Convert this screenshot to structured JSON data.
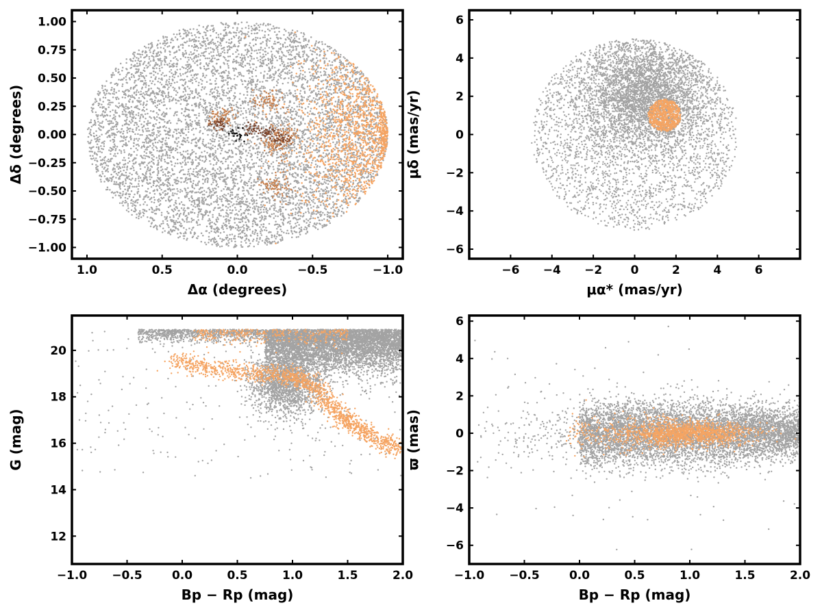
{
  "colors": {
    "field": "#a3a3a3",
    "member": "#f5a462",
    "member_mid": "#c98250",
    "member_dark": "#7a4630",
    "core": "#111111"
  },
  "chart_data": [
    {
      "type": "scatter",
      "id": "sky",
      "xlabel": "Δα (degrees)",
      "ylabel": "Δδ (degrees)",
      "xlim": [
        1.1,
        -1.1
      ],
      "ylim": [
        -1.1,
        1.1
      ],
      "xticks": [
        1.0,
        0.5,
        0.0,
        -0.5,
        -1.0
      ],
      "xtick_labels": [
        "1.0",
        "0.5",
        "0.0",
        "−0.5",
        "−1.0"
      ],
      "yticks": [
        1.0,
        0.75,
        0.5,
        0.25,
        0.0,
        -0.25,
        -0.5,
        -0.75,
        -1.0
      ],
      "ytick_labels": [
        "1.00",
        "0.75",
        "0.50",
        "0.25",
        "0.00",
        "−0.25",
        "−0.50",
        "−0.75",
        "−1.00"
      ],
      "grid": false,
      "series": [
        {
          "role": "field",
          "distribution": "uniform disk",
          "center": [
            0,
            0
          ],
          "radius_x": 1.0,
          "radius_y": 1.0
        },
        {
          "role": "member",
          "distribution": "eastern crescent",
          "center": [
            -0.85,
            0.0
          ],
          "extent_x": [
            -1.0,
            -0.35
          ],
          "extent_y": [
            -0.95,
            0.75
          ]
        },
        {
          "role": "member_mid",
          "distribution": "clumps",
          "clumps": [
            [
              -0.2,
              0.3
            ],
            [
              -0.25,
              -0.1
            ],
            [
              -0.3,
              0.0
            ],
            [
              -0.25,
              -0.45
            ],
            [
              0.1,
              0.15
            ]
          ]
        },
        {
          "role": "member_dark",
          "distribution": "clumps",
          "clumps": [
            [
              -0.1,
              0.05
            ],
            [
              -0.2,
              0.02
            ],
            [
              -0.3,
              -0.05
            ],
            [
              0.12,
              0.1
            ]
          ]
        },
        {
          "role": "core",
          "distribution": "tight",
          "center": [
            0.0,
            0.0
          ],
          "spread": [
            0.04,
            0.03
          ]
        }
      ]
    },
    {
      "type": "scatter",
      "id": "proper-motion",
      "xlabel": "μα* (mas/yr)",
      "ylabel": "μδ (mas/yr)",
      "xlim": [
        -8,
        8
      ],
      "ylim": [
        -6.5,
        6.5
      ],
      "xticks": [
        -6,
        -4,
        -2,
        0,
        2,
        4,
        6
      ],
      "xtick_labels": [
        "−6",
        "−4",
        "−2",
        "0",
        "2",
        "4",
        "6"
      ],
      "yticks": [
        6,
        4,
        2,
        0,
        -2,
        -4,
        -6
      ],
      "ytick_labels": [
        "6",
        "4",
        "2",
        "0",
        "−2",
        "−4",
        "−6"
      ],
      "grid": false,
      "series": [
        {
          "role": "field",
          "distribution": "disk radius 5",
          "center": [
            0.0,
            0.0
          ],
          "radius": 5.0,
          "dense_center": [
            0.5,
            2.0
          ]
        },
        {
          "role": "member",
          "distribution": "tight cluster",
          "center": [
            1.45,
            1.0
          ],
          "radius": 0.8
        }
      ]
    },
    {
      "type": "scatter",
      "id": "cmd",
      "xlabel": "Bp − Rp (mag)",
      "ylabel": "G (mag)",
      "xlim": [
        -1.0,
        2.0
      ],
      "ylim": [
        10.8,
        21.5
      ],
      "xticks": [
        -1.0,
        -0.5,
        0.0,
        0.5,
        1.0,
        1.5,
        2.0
      ],
      "xtick_labels": [
        "−1.0",
        "−0.5",
        "0.0",
        "0.5",
        "1.0",
        "1.5",
        "2.0"
      ],
      "yticks": [
        20,
        18,
        16,
        14,
        12
      ],
      "ytick_labels": [
        "20",
        "18",
        "16",
        "14",
        "12"
      ],
      "grid": false,
      "series": [
        {
          "role": "field",
          "distribution": "magnitude-limited band",
          "g_limit": 20.9
        },
        {
          "role": "member",
          "distribution": "cluster sequence",
          "sequence": [
            [
              -0.1,
              19.6
            ],
            [
              0.3,
              19.2
            ],
            [
              0.7,
              19.0
            ],
            [
              1.0,
              18.9
            ],
            [
              1.2,
              18.5
            ],
            [
              1.35,
              17.6
            ],
            [
              1.5,
              17.0
            ],
            [
              1.7,
              16.3
            ],
            [
              2.0,
              15.7
            ]
          ]
        }
      ]
    },
    {
      "type": "scatter",
      "id": "parallax",
      "xlabel": "Bp − Rp (mag)",
      "ylabel": "ϖ (mas)",
      "xlim": [
        -1.0,
        2.0
      ],
      "ylim": [
        -7,
        6.3
      ],
      "xticks": [
        -1.0,
        -0.5,
        0.0,
        0.5,
        1.0,
        1.5,
        2.0
      ],
      "xtick_labels": [
        "−1.0",
        "−0.5",
        "0.0",
        "0.5",
        "1.0",
        "1.5",
        "2.0"
      ],
      "yticks": [
        6,
        4,
        2,
        0,
        -2,
        -4,
        -6
      ],
      "ytick_labels": [
        "6",
        "4",
        "2",
        "0",
        "−2",
        "−4",
        "−6"
      ],
      "grid": false,
      "series": [
        {
          "role": "field",
          "distribution": "band around zero",
          "center_y": 0.0,
          "spread_y": 1.0
        },
        {
          "role": "member",
          "distribution": "narrow band",
          "center_y": 0.0,
          "spread_y": 0.3
        }
      ]
    }
  ]
}
